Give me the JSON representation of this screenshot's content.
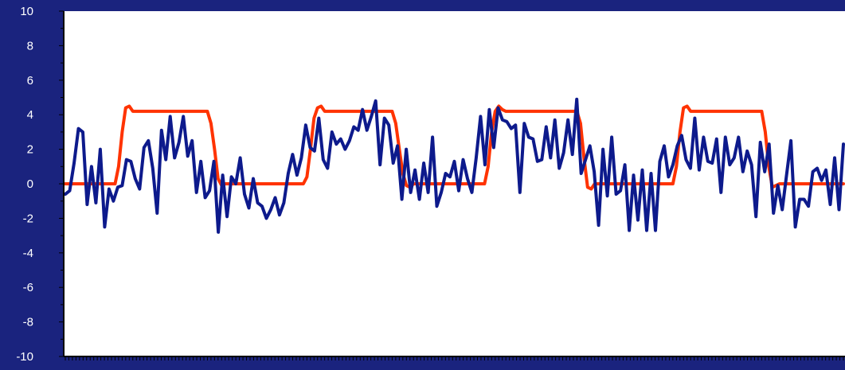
{
  "colors": {
    "background": "#1a237e",
    "plot_area": "#ffffff",
    "axis": "#000000",
    "tick_label": "#ffffff",
    "signal": "#0d1a8c",
    "reference": "#ff3300"
  },
  "chart_data": {
    "type": "line",
    "title": "",
    "xlabel": "",
    "ylabel": "",
    "ylim": [
      -10,
      10
    ],
    "yticks": [
      10,
      8,
      6,
      4,
      2,
      0,
      -2,
      -4,
      -6,
      -8,
      -10
    ],
    "yticks_labels": [
      "10",
      "8",
      "6",
      "4",
      "2",
      "0",
      "-2",
      "-4",
      "-6",
      "-8",
      "-10"
    ],
    "x_count": 220,
    "grid": false,
    "legend": "none",
    "series": [
      {
        "key": "reference",
        "color": "#ff3300",
        "points": [
          [
            0,
            0
          ],
          [
            14,
            0
          ],
          [
            15,
            1
          ],
          [
            16,
            3
          ],
          [
            17,
            4.4
          ],
          [
            18,
            4.5
          ],
          [
            19,
            4.2
          ],
          [
            40,
            4.2
          ],
          [
            41,
            3.5
          ],
          [
            42,
            2
          ],
          [
            43,
            0.3
          ],
          [
            44,
            -0.1
          ],
          [
            45,
            0
          ],
          [
            67,
            0
          ],
          [
            68,
            0.4
          ],
          [
            69,
            2
          ],
          [
            70,
            3.8
          ],
          [
            71,
            4.4
          ],
          [
            72,
            4.5
          ],
          [
            73,
            4.2
          ],
          [
            92,
            4.2
          ],
          [
            93,
            3.5
          ],
          [
            94,
            2
          ],
          [
            95,
            0.6
          ],
          [
            96,
            -0.1
          ],
          [
            97,
            -0.2
          ],
          [
            98,
            0
          ],
          [
            118,
            0
          ],
          [
            119,
            1
          ],
          [
            120,
            3
          ],
          [
            121,
            4.2
          ],
          [
            122,
            4.5
          ],
          [
            123,
            4.3
          ],
          [
            124,
            4.2
          ],
          [
            144,
            4.2
          ],
          [
            145,
            3.5
          ],
          [
            146,
            1.5
          ],
          [
            147,
            -0.2
          ],
          [
            148,
            -0.3
          ],
          [
            149,
            0
          ],
          [
            171,
            0
          ],
          [
            172,
            1
          ],
          [
            173,
            3
          ],
          [
            174,
            4.4
          ],
          [
            175,
            4.5
          ],
          [
            176,
            4.2
          ],
          [
            196,
            4.2
          ],
          [
            197,
            3
          ],
          [
            198,
            1
          ],
          [
            199,
            -0.2
          ],
          [
            200,
            -0.1
          ],
          [
            201,
            0
          ],
          [
            219,
            0
          ]
        ]
      },
      {
        "key": "signal",
        "color": "#0d1a8c",
        "y": [
          -0.6,
          -0.4,
          1.2,
          3.2,
          3,
          -1.2,
          1,
          -1.1,
          2,
          -2.5,
          -0.3,
          -1,
          -0.2,
          -0.1,
          1.4,
          1.3,
          0.3,
          -0.3,
          2.1,
          2.5,
          0.9,
          -1.7,
          3.1,
          1.4,
          3.9,
          1.5,
          2.4,
          3.9,
          1.6,
          2.5,
          -0.5,
          1.3,
          -0.8,
          -0.4,
          1.3,
          -2.8,
          0.5,
          -1.9,
          0.4,
          0,
          1.5,
          -0.6,
          -1.4,
          0.3,
          -1.1,
          -1.3,
          -2,
          -1.5,
          -0.8,
          -1.8,
          -1.1,
          0.6,
          1.7,
          0.5,
          1.5,
          3.4,
          2.1,
          1.9,
          3.8,
          1.4,
          0.9,
          3,
          2.3,
          2.6,
          2,
          2.5,
          3.3,
          3.1,
          4.3,
          3.1,
          3.9,
          4.8,
          1.1,
          3.8,
          3.4,
          1.2,
          2.2,
          -0.9,
          2,
          -0.5,
          0.8,
          -0.9,
          1.2,
          -0.5,
          2.7,
          -1.3,
          -0.5,
          0.6,
          0.4,
          1.3,
          -0.4,
          1.4,
          0.3,
          -0.5,
          1.5,
          3.9,
          1.1,
          4.3,
          2.1,
          4.4,
          3.7,
          3.6,
          3.2,
          3.4,
          -0.5,
          3.5,
          2.7,
          2.6,
          1.3,
          1.4,
          3.3,
          1.5,
          3.7,
          0.9,
          1.8,
          3.7,
          1.7,
          4.9,
          0.6,
          1.4,
          2.2,
          0.7,
          -2.4,
          2,
          -0.7,
          2.7,
          -0.6,
          -0.4,
          1.1,
          -2.7,
          0.5,
          -2.1,
          0.8,
          -2.7,
          0.6,
          -2.7,
          1.3,
          2.2,
          0.4,
          1.1,
          2.2,
          2.8,
          1.4,
          0.9,
          3.8,
          0.8,
          2.7,
          1.3,
          1.2,
          2.6,
          -0.5,
          2.7,
          1.1,
          1.5,
          2.7,
          0.7,
          1.9,
          1.1,
          -1.9,
          2.4,
          0.7,
          2.3,
          -1.7,
          -0.1,
          -1.5,
          0.5,
          2.5,
          -2.5,
          -0.9,
          -0.9,
          -1.3,
          0.7,
          0.9,
          0.2,
          0.8,
          -1.2,
          1.5,
          -1.5,
          2.3
        ]
      }
    ]
  }
}
